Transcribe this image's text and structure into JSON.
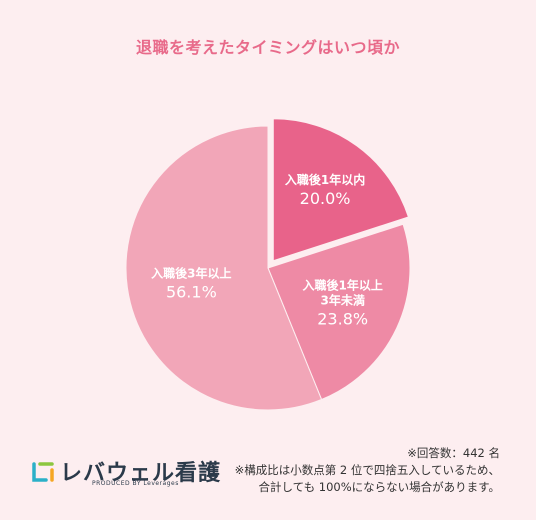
{
  "title": "退職を考えたタイミングはいつ頃か",
  "chart_data": {
    "type": "pie",
    "title": "退職を考えたタイミングはいつ頃か",
    "slices": [
      {
        "label": "入職後1年以内",
        "value": 20.0,
        "display": "20.0%",
        "color": "#e8638a",
        "exploded": true
      },
      {
        "label": "入職後1年以上\n3年未満",
        "value": 23.8,
        "display": "23.8%",
        "color": "#ee8aa5",
        "exploded": false
      },
      {
        "label": "入職後3年以上",
        "value": 56.1,
        "display": "56.1%",
        "color": "#f2a6b8",
        "exploded": false
      }
    ]
  },
  "notes": {
    "responses": "※回答数：442 名",
    "rounding_line1": "※構成比は小数点第 2 位で四捨五入しているため、",
    "rounding_line2": "合計しても 100%にならない場合があります。"
  },
  "logo": {
    "name": "レバウェル看護",
    "sub": "PRODUCED BY Leverages",
    "colors": [
      "#2bb0c8",
      "#8cc63f",
      "#f5a623",
      "#2b3a4a"
    ]
  }
}
